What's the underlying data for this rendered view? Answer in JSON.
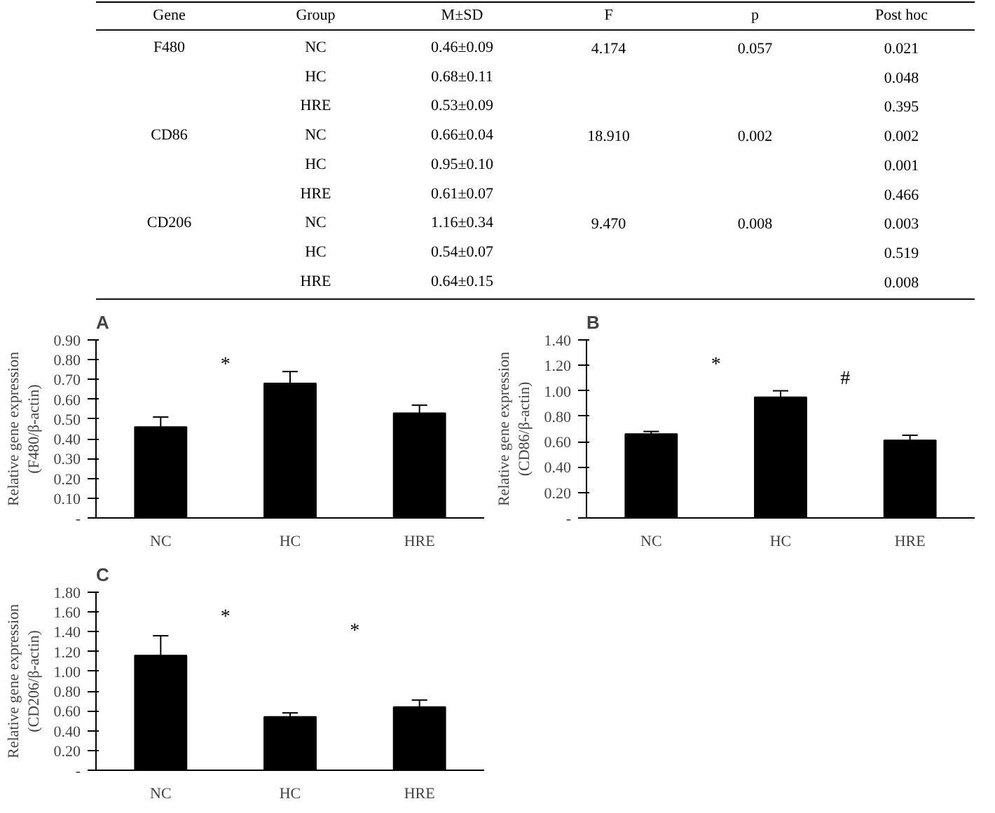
{
  "chart_data": [
    {
      "type": "other",
      "categories": [
        "Gene",
        "Group",
        "M±SD",
        "F",
        "p",
        "Post hoc"
      ],
      "cell_labels": [
        [
          "F480",
          "NC",
          "0.46±0.09",
          "4.174",
          "0.057",
          "0.021"
        ],
        [
          null,
          "HC",
          "0.68±0.11",
          null,
          null,
          "0.048"
        ],
        [
          null,
          "HRE",
          "0.53±0.09",
          null,
          null,
          "0.395"
        ],
        [
          "CD86",
          "NC",
          "0.66±0.04",
          "18.910",
          "0.002",
          "0.002"
        ],
        [
          null,
          "HC",
          "0.95±0.10",
          null,
          null,
          "0.001"
        ],
        [
          null,
          "HRE",
          "0.61±0.07",
          null,
          null,
          "0.466"
        ],
        [
          "CD206",
          "NC",
          "1.16±0.34",
          "9.470",
          "0.008",
          "0.003"
        ],
        [
          null,
          "HC",
          "0.54±0.07",
          null,
          null,
          "0.519"
        ],
        [
          null,
          "HRE",
          "0.64±0.15",
          null,
          null,
          "0.008"
        ]
      ]
    },
    {
      "type": "bar",
      "title": "A",
      "ylabel": "Relative gene expression\n(F480/β-actin)",
      "categories": [
        "NC",
        "HC",
        "HRE"
      ],
      "values": [
        0.46,
        0.68,
        0.53
      ],
      "errors": [
        0.05,
        0.06,
        0.04
      ],
      "color": "#000000",
      "ylim": [
        0,
        0.9
      ],
      "yticks": [
        {
          "value": 0,
          "label": "-"
        },
        {
          "value": 0.1,
          "label": "0.10"
        },
        {
          "value": 0.2,
          "label": "0.20"
        },
        {
          "value": 0.3,
          "label": "0.30"
        },
        {
          "value": 0.4,
          "label": "0.40"
        },
        {
          "value": 0.5,
          "label": "0.50"
        },
        {
          "value": 0.6,
          "label": "0.60"
        },
        {
          "value": 0.7,
          "label": "0.70"
        },
        {
          "value": 0.8,
          "label": "0.80"
        },
        {
          "value": 0.9,
          "label": "0.90"
        }
      ],
      "annotations": [
        "*"
      ]
    },
    {
      "type": "bar",
      "title": "B",
      "ylabel": "Relative gene expression\n(CD86/β-actin)",
      "categories": [
        "NC",
        "HC",
        "HRE"
      ],
      "values": [
        0.66,
        0.95,
        0.61
      ],
      "errors": [
        0.02,
        0.05,
        0.04
      ],
      "color": "#000000",
      "ylim": [
        0,
        1.4
      ],
      "yticks": [
        {
          "value": 0,
          "label": "-"
        },
        {
          "value": 0.2,
          "label": "0.20"
        },
        {
          "value": 0.4,
          "label": "0.40"
        },
        {
          "value": 0.6,
          "label": "0.60"
        },
        {
          "value": 0.8,
          "label": "0.80"
        },
        {
          "value": 1.0,
          "label": "1.00"
        },
        {
          "value": 1.2,
          "label": "1.20"
        },
        {
          "value": 1.4,
          "label": "1.40"
        }
      ],
      "annotations": [
        "*",
        "#"
      ]
    },
    {
      "type": "bar",
      "title": "C",
      "ylabel": "Relative gene expression\n(CD206/β-actin)",
      "categories": [
        "NC",
        "HC",
        "HRE"
      ],
      "values": [
        1.16,
        0.54,
        0.64
      ],
      "errors": [
        0.2,
        0.04,
        0.07
      ],
      "color": "#000000",
      "ylim": [
        0,
        1.8
      ],
      "yticks": [
        {
          "value": 0,
          "label": "-"
        },
        {
          "value": 0.2,
          "label": "0.20"
        },
        {
          "value": 0.4,
          "label": "0.40"
        },
        {
          "value": 0.6,
          "label": "0.60"
        },
        {
          "value": 0.8,
          "label": "0.80"
        },
        {
          "value": 1.0,
          "label": "1.00"
        },
        {
          "value": 1.2,
          "label": "1.20"
        },
        {
          "value": 1.4,
          "label": "1.40"
        },
        {
          "value": 1.6,
          "label": "1.60"
        },
        {
          "value": 1.8,
          "label": "1.80"
        }
      ],
      "annotations": [
        "*",
        "*"
      ]
    }
  ]
}
